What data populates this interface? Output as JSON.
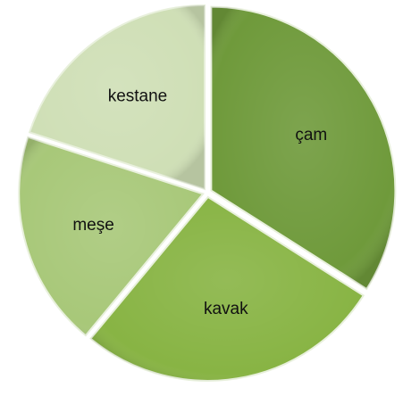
{
  "chart_data": {
    "type": "pie",
    "categories": [
      "çam",
      "kavak",
      "meşe",
      "kestane"
    ],
    "values": [
      34,
      27,
      19,
      20
    ],
    "colors": [
      "#6f9a3b",
      "#88b444",
      "#a8c879",
      "#cfdfb6"
    ]
  }
}
